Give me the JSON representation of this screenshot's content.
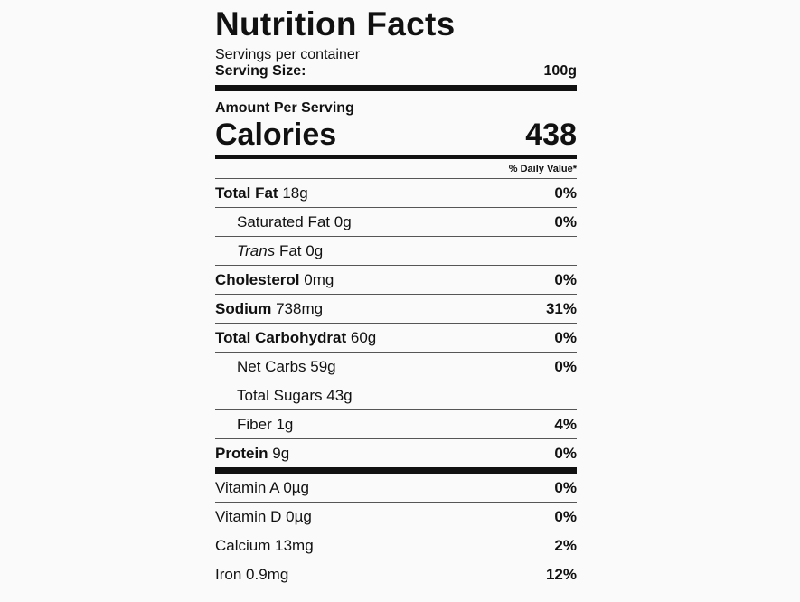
{
  "header": {
    "title": "Nutrition Facts",
    "servings": "Servings per container",
    "serving_size_label": "Serving Size:",
    "serving_size_value": "100g"
  },
  "calories": {
    "heading": "Amount Per Serving",
    "label": "Calories",
    "value": "438",
    "daily_value_header": "% Daily Value*"
  },
  "nutrients": [
    {
      "name": "Total Fat",
      "amount": "18g",
      "dv": "0%",
      "sub": [
        {
          "name": "Saturated Fat",
          "amount": "0g",
          "dv": "0%"
        },
        {
          "italic": "Trans",
          "name": "Fat",
          "amount": "0g"
        }
      ]
    },
    {
      "name": "Cholesterol",
      "amount": "0mg",
      "dv": "0%"
    },
    {
      "name": "Sodium",
      "amount": "738mg",
      "dv": "31%"
    },
    {
      "name": "Total Carbohydrat",
      "amount": "60g",
      "dv": "0%",
      "sub": [
        {
          "name": "Net Carbs",
          "amount": "59g",
          "dv": "0%"
        },
        {
          "name": "Total Sugars",
          "amount": "43g"
        },
        {
          "name": "Fiber",
          "amount": "1g",
          "dv": "4%"
        }
      ]
    },
    {
      "name": "Protein",
      "amount": "9g",
      "dv": "0%"
    }
  ],
  "minerals": [
    {
      "name": "Vitamin A",
      "amount": "0µg",
      "dv": "0%"
    },
    {
      "name": "Vitamin D",
      "amount": "0µg",
      "dv": "0%"
    },
    {
      "name": "Calcium",
      "amount": "13mg",
      "dv": "2%"
    },
    {
      "name": "Iron",
      "amount": "0.9mg",
      "dv": "12%"
    }
  ]
}
